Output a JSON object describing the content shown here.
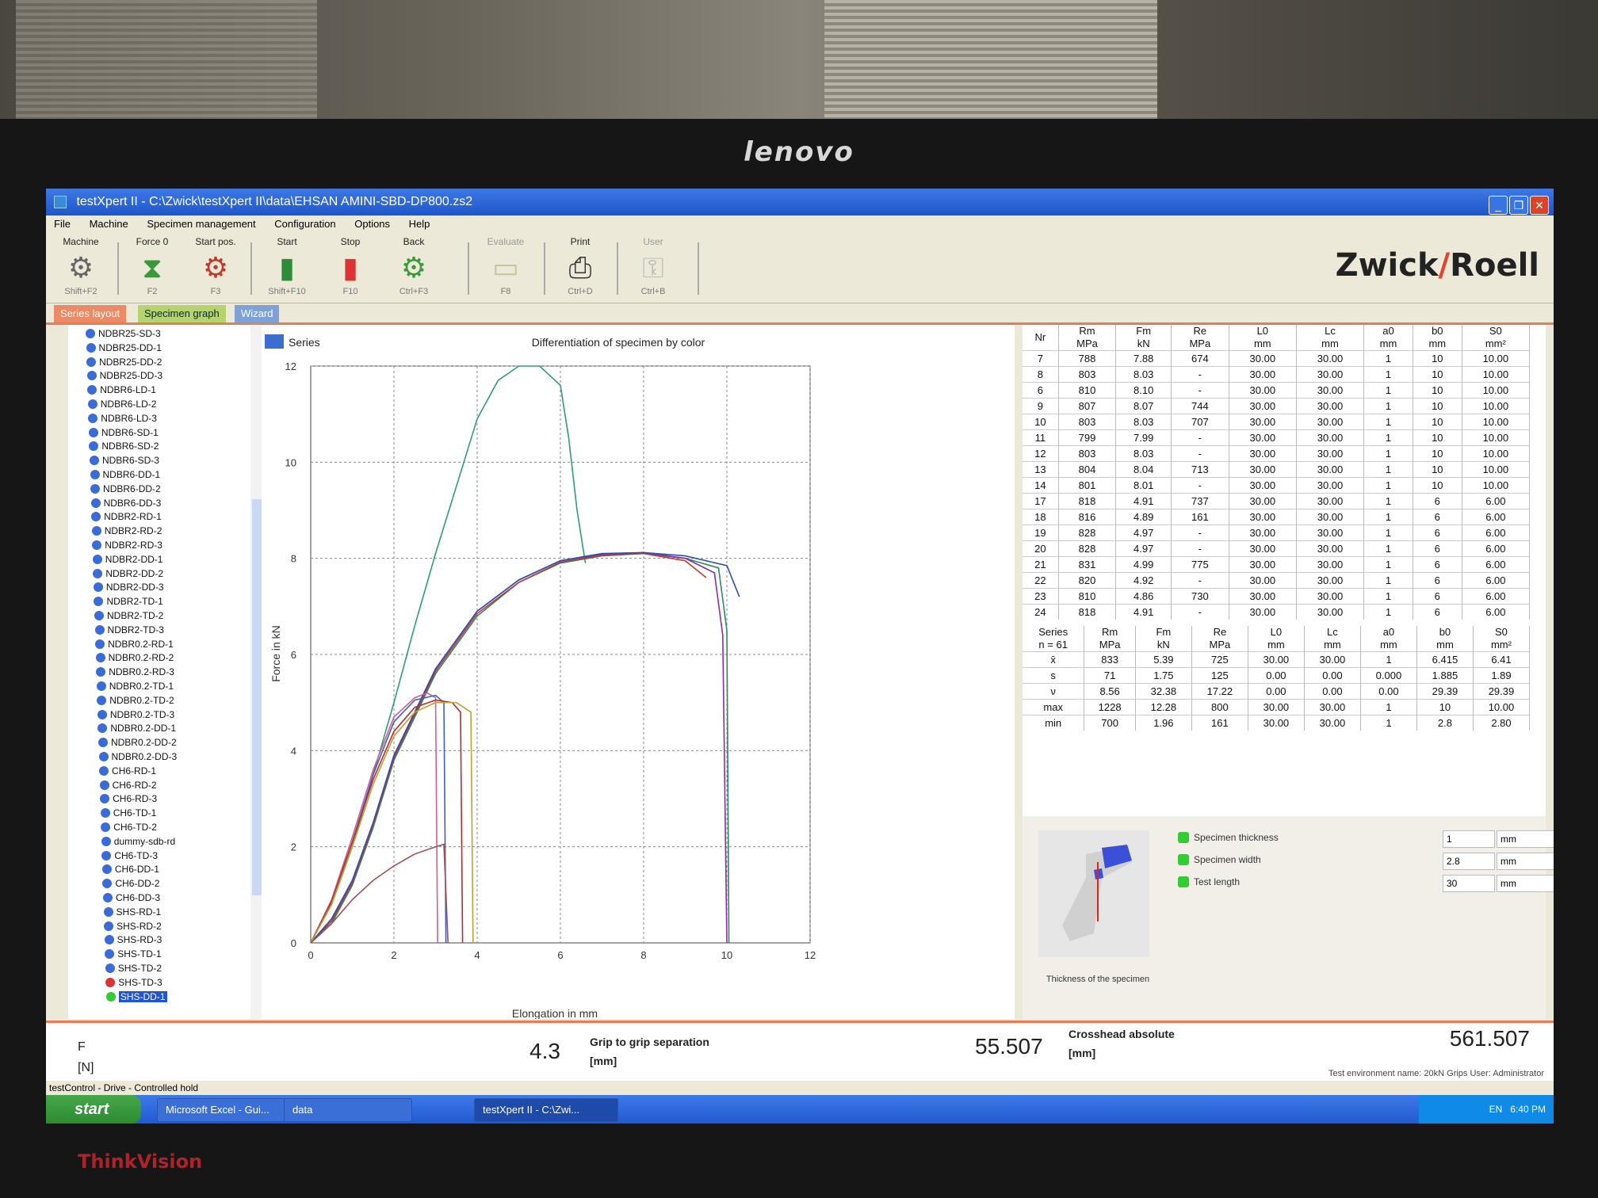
{
  "monitor": {
    "brand": "lenovo",
    "model": "ThinkVision"
  },
  "window": {
    "title": "testXpert II - C:\\Zwick\\testXpert II\\data\\EHSAN AMINI-SBD-DP800.zs2",
    "buttons": [
      "_",
      "❐",
      "✕"
    ]
  },
  "menu": [
    "File",
    "Machine",
    "Specimen management",
    "Configuration",
    "Options",
    "Help"
  ],
  "toolbar": {
    "buttons": [
      {
        "label": "Machine",
        "key": "Shift+F2",
        "icon": "gear-icon",
        "glyph": "⚙"
      },
      {
        "label": "Force 0",
        "key": "F2",
        "icon": "scale-icon",
        "glyph": "⧗"
      },
      {
        "label": "Start pos.",
        "key": "F3",
        "icon": "gear-red-icon",
        "glyph": "⚙"
      },
      {
        "label": "Start",
        "key": "Shift+F10",
        "icon": "traffic-light-green-icon",
        "glyph": "▮"
      },
      {
        "label": "Stop",
        "key": "F10",
        "icon": "traffic-light-red-icon",
        "glyph": "▮"
      },
      {
        "label": "Back",
        "key": "Ctrl+F3",
        "icon": "gear-green-icon",
        "glyph": "⚙"
      },
      {
        "label": "Evaluate",
        "key": "F8",
        "icon": "document-icon",
        "glyph": "▭"
      },
      {
        "label": "Print",
        "key": "Ctrl+D",
        "icon": "printer-icon",
        "glyph": "⎙"
      },
      {
        "label": "User",
        "key": "Ctrl+B",
        "icon": "key-icon",
        "glyph": "⚿"
      }
    ],
    "logo_left": "Zwick",
    "logo_slash": "/",
    "logo_right": "Roell"
  },
  "tabs": [
    "Series layout",
    "Specimen graph",
    "Wizard"
  ],
  "tree": {
    "items": [
      "NDBR25-SD-3",
      "NDBR25-DD-1",
      "NDBR25-DD-2",
      "NDBR25-DD-3",
      "NDBR6-LD-1",
      "NDBR6-LD-2",
      "NDBR6-LD-3",
      "NDBR6-SD-1",
      "NDBR6-SD-2",
      "NDBR6-SD-3",
      "NDBR6-DD-1",
      "NDBR6-DD-2",
      "NDBR6-DD-3",
      "NDBR2-RD-1",
      "NDBR2-RD-2",
      "NDBR2-RD-3",
      "NDBR2-DD-1",
      "NDBR2-DD-2",
      "NDBR2-DD-3",
      "NDBR2-TD-1",
      "NDBR2-TD-2",
      "NDBR2-TD-3",
      "NDBR0.2-RD-1",
      "NDBR0.2-RD-2",
      "NDBR0.2-RD-3",
      "NDBR0.2-TD-1",
      "NDBR0.2-TD-2",
      "NDBR0.2-TD-3",
      "NDBR0.2-DD-1",
      "NDBR0.2-DD-2",
      "NDBR0.2-DD-3",
      "CH6-RD-1",
      "CH6-RD-2",
      "CH6-RD-3",
      "CH6-TD-1",
      "CH6-TD-2",
      "dummy-sdb-rd",
      "CH6-TD-3",
      "CH6-DD-1",
      "CH6-DD-2",
      "CH6-DD-3",
      "SHS-RD-1",
      "SHS-RD-2",
      "SHS-RD-3",
      "SHS-TD-1",
      "SHS-TD-2",
      "SHS-TD-3",
      "SHS-DD-1"
    ],
    "selected": "SHS-DD-1"
  },
  "chart": {
    "legend": "Series",
    "title": "Differentiation of specimen by color",
    "xlabel": "Elongation in mm",
    "ylabel": "Force in kN",
    "xticks": [
      "0",
      "2",
      "4",
      "6",
      "8",
      "10",
      "12"
    ],
    "yticks": [
      "0",
      "2",
      "4",
      "6",
      "8",
      "10",
      "12"
    ]
  },
  "chart_data": {
    "type": "line",
    "title": "Differentiation of specimen by color",
    "xlabel": "Elongation in mm",
    "ylabel": "Force in kN",
    "xlim": [
      0,
      12
    ],
    "ylim": [
      0,
      12
    ],
    "grid": true,
    "series": [
      {
        "color": "#2e9e6e",
        "x": [
          0,
          0.5,
          1,
          1.5,
          2,
          2.5,
          3,
          3.5,
          4,
          4.5,
          5,
          5.5,
          6,
          6.2,
          6.4,
          6.6
        ],
        "y": [
          0,
          0.8,
          2,
          3.5,
          5,
          6.6,
          8.1,
          9.5,
          10.9,
          11.7,
          12.0,
          12.0,
          11.6,
          10.5,
          9.0,
          7.9
        ]
      },
      {
        "color": "#2a8a60",
        "x": [
          0,
          0.5,
          1,
          1.5,
          2,
          3,
          4,
          5,
          6,
          7,
          8,
          9,
          9.8,
          10.0,
          10.05
        ],
        "y": [
          0,
          0.4,
          1.2,
          2.4,
          3.8,
          5.6,
          6.8,
          7.5,
          7.9,
          8.05,
          8.1,
          8.0,
          7.8,
          6.5,
          0
        ]
      },
      {
        "color": "#8b2fa0",
        "x": [
          0,
          0.5,
          1,
          1.5,
          2,
          3,
          4,
          5,
          6,
          7,
          8,
          9,
          9.7,
          9.9,
          10.0
        ],
        "y": [
          0,
          0.5,
          1.3,
          2.5,
          3.9,
          5.7,
          6.9,
          7.55,
          7.95,
          8.08,
          8.12,
          8.0,
          7.7,
          6.4,
          0
        ]
      },
      {
        "color": "#c0392b",
        "x": [
          0,
          0.5,
          1,
          1.5,
          2,
          3,
          4,
          5,
          6,
          7,
          8,
          9,
          9.5
        ],
        "y": [
          0,
          0.45,
          1.25,
          2.45,
          3.85,
          5.65,
          6.85,
          7.5,
          7.92,
          8.06,
          8.1,
          7.95,
          7.6
        ]
      },
      {
        "color": "#2f4fb0",
        "x": [
          0,
          0.5,
          1,
          1.5,
          2,
          3,
          4,
          5,
          6,
          7,
          8,
          9,
          10,
          10.3
        ],
        "y": [
          0,
          0.5,
          1.3,
          2.5,
          3.9,
          5.7,
          6.9,
          7.55,
          7.95,
          8.1,
          8.12,
          8.05,
          7.85,
          7.2
        ]
      },
      {
        "color": "#d06090",
        "x": [
          0,
          0.5,
          1,
          1.5,
          2,
          2.5,
          2.8,
          3.0,
          3.05
        ],
        "y": [
          0,
          0.9,
          2.2,
          3.6,
          4.7,
          5.1,
          5.2,
          5.1,
          0
        ]
      },
      {
        "color": "#4060c0",
        "x": [
          0,
          0.5,
          1,
          1.5,
          2,
          2.5,
          3.0,
          3.2,
          3.25
        ],
        "y": [
          0,
          0.85,
          2.1,
          3.5,
          4.6,
          5.05,
          5.15,
          5.0,
          0
        ]
      },
      {
        "color": "#b03030",
        "x": [
          0,
          0.5,
          1,
          1.5,
          2,
          2.5,
          3,
          3.4,
          3.6,
          3.65
        ],
        "y": [
          0,
          0.85,
          2.1,
          3.4,
          4.4,
          4.9,
          5.05,
          5.0,
          4.8,
          0
        ]
      },
      {
        "color": "#c0a030",
        "x": [
          0,
          0.5,
          1,
          1.5,
          2,
          2.5,
          3,
          3.5,
          3.85,
          3.9
        ],
        "y": [
          0,
          0.8,
          2.0,
          3.3,
          4.3,
          4.8,
          5.0,
          5.0,
          4.8,
          0
        ]
      },
      {
        "color": "#a05050",
        "x": [
          0,
          0.5,
          1,
          1.5,
          2,
          2.5,
          3,
          3.2,
          3.3
        ],
        "y": [
          0,
          0.4,
          0.9,
          1.3,
          1.6,
          1.85,
          2.0,
          2.05,
          0
        ]
      }
    ]
  },
  "results": {
    "headers": [
      {
        "name": "Nr",
        "unit": ""
      },
      {
        "name": "Rm",
        "unit": "MPa"
      },
      {
        "name": "Fm",
        "unit": "kN"
      },
      {
        "name": "Re",
        "unit": "MPa"
      },
      {
        "name": "L0",
        "unit": "mm"
      },
      {
        "name": "Lc",
        "unit": "mm"
      },
      {
        "name": "a0",
        "unit": "mm"
      },
      {
        "name": "b0",
        "unit": "mm"
      },
      {
        "name": "S0",
        "unit": "mm²"
      }
    ],
    "rows": [
      [
        "7",
        "788",
        "7.88",
        "674",
        "30.00",
        "30.00",
        "1",
        "10",
        "10.00"
      ],
      [
        "8",
        "803",
        "8.03",
        "-",
        "30.00",
        "30.00",
        "1",
        "10",
        "10.00"
      ],
      [
        "6",
        "810",
        "8.10",
        "-",
        "30.00",
        "30.00",
        "1",
        "10",
        "10.00"
      ],
      [
        "9",
        "807",
        "8.07",
        "744",
        "30.00",
        "30.00",
        "1",
        "10",
        "10.00"
      ],
      [
        "10",
        "803",
        "8.03",
        "707",
        "30.00",
        "30.00",
        "1",
        "10",
        "10.00"
      ],
      [
        "11",
        "799",
        "7.99",
        "-",
        "30.00",
        "30.00",
        "1",
        "10",
        "10.00"
      ],
      [
        "12",
        "803",
        "8.03",
        "-",
        "30.00",
        "30.00",
        "1",
        "10",
        "10.00"
      ],
      [
        "13",
        "804",
        "8.04",
        "713",
        "30.00",
        "30.00",
        "1",
        "10",
        "10.00"
      ],
      [
        "14",
        "801",
        "8.01",
        "-",
        "30.00",
        "30.00",
        "1",
        "10",
        "10.00"
      ],
      [
        "17",
        "818",
        "4.91",
        "737",
        "30.00",
        "30.00",
        "1",
        "6",
        "6.00"
      ],
      [
        "18",
        "816",
        "4.89",
        "161",
        "30.00",
        "30.00",
        "1",
        "6",
        "6.00"
      ],
      [
        "19",
        "828",
        "4.97",
        "-",
        "30.00",
        "30.00",
        "1",
        "6",
        "6.00"
      ],
      [
        "20",
        "828",
        "4.97",
        "-",
        "30.00",
        "30.00",
        "1",
        "6",
        "6.00"
      ],
      [
        "21",
        "831",
        "4.99",
        "775",
        "30.00",
        "30.00",
        "1",
        "6",
        "6.00"
      ],
      [
        "22",
        "820",
        "4.92",
        "-",
        "30.00",
        "30.00",
        "1",
        "6",
        "6.00"
      ],
      [
        "23",
        "810",
        "4.86",
        "730",
        "30.00",
        "30.00",
        "1",
        "6",
        "6.00"
      ],
      [
        "24",
        "818",
        "4.91",
        "-",
        "30.00",
        "30.00",
        "1",
        "6",
        "6.00"
      ]
    ]
  },
  "stats": {
    "series_label": "Series",
    "n_label": "n = 61",
    "rows": [
      [
        "x̄",
        "833",
        "5.39",
        "725",
        "30.00",
        "30.00",
        "1",
        "6.415",
        "6.41"
      ],
      [
        "s",
        "71",
        "1.75",
        "125",
        "0.00",
        "0.00",
        "0.000",
        "1.885",
        "1.89"
      ],
      [
        "ν",
        "8.56",
        "32.38",
        "17.22",
        "0.00",
        "0.00",
        "0.00",
        "29.39",
        "29.39"
      ],
      [
        "max",
        "1228",
        "12.28",
        "800",
        "30.00",
        "30.00",
        "1",
        "10",
        "10.00"
      ],
      [
        "min",
        "700",
        "1.96",
        "161",
        "30.00",
        "30.00",
        "1",
        "2.8",
        "2.80"
      ]
    ]
  },
  "properties": {
    "image_caption": "Thickness of the specimen",
    "items": [
      {
        "label": "Specimen thickness",
        "value": "1",
        "unit": "mm"
      },
      {
        "label": "Specimen width",
        "value": "2.8",
        "unit": "mm"
      },
      {
        "label": "Test length",
        "value": "30",
        "unit": "mm"
      }
    ]
  },
  "status": {
    "f_label": "F",
    "f_unit": "[N]",
    "grip_value": "4.3",
    "grip_label": "Grip to grip separation",
    "grip_unit": "[mm]",
    "cross_value": "55.507",
    "cross_label": "Crosshead absolute",
    "cross_unit": "[mm]",
    "right_value": "561.507",
    "env": "Test environment name: 20kN Grips   User: Administrator",
    "control": "testControl - Drive - Controlled hold"
  },
  "taskbar": {
    "start": "start",
    "tasks": [
      "Microsoft Excel - Gui...",
      "data",
      "testXpert II - C:\\Zwi..."
    ],
    "tray_lang": "EN",
    "tray_time": "6:40 PM"
  },
  "colors": {
    "accent": "#e77c5a",
    "titlebar": "#2a63d8",
    "tab_green": "#b6d46e"
  }
}
